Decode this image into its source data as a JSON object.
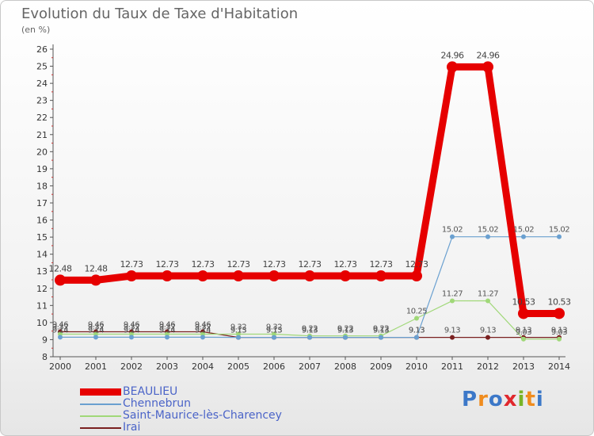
{
  "title": "Evolution du Taux de Taxe d'Habitation",
  "unit_label": "(en %)",
  "logo": {
    "letters": [
      "P",
      "r",
      "o",
      "x",
      "i",
      "t",
      "i"
    ],
    "colors": [
      "#3c78c8",
      "#f08c1e",
      "#3c78c8",
      "#e0282d",
      "#78b428",
      "#f08c1e",
      "#3c78c8"
    ]
  },
  "chart_data": {
    "type": "line",
    "x": [
      "2000",
      "2001",
      "2002",
      "2003",
      "2004",
      "2005",
      "2006",
      "2007",
      "2008",
      "2009",
      "2010",
      "2011",
      "2012",
      "2013",
      "2014"
    ],
    "ylim": [
      8,
      26
    ],
    "y_ticks": [
      "8",
      "9",
      "10",
      "11",
      "12",
      "13",
      "14",
      "15",
      "16",
      "17",
      "18",
      "19",
      "20",
      "21",
      "22",
      "23",
      "24",
      "25",
      "26"
    ],
    "grid": false,
    "legend_position": "bottom-left",
    "series": [
      {
        "name": "BEAULIEU",
        "color": "#e60000",
        "values": [
          12.48,
          12.48,
          12.73,
          12.73,
          12.73,
          12.73,
          12.73,
          12.73,
          12.73,
          12.73,
          12.73,
          24.96,
          24.96,
          10.53,
          10.53
        ],
        "labels": [
          "12.48",
          "12.48",
          "12.73",
          "12.73",
          "12.73",
          "12.73",
          "12.73",
          "12.73",
          "12.73",
          "12.73",
          "12.73",
          "24.96",
          "24.96",
          "10.53",
          "10.53"
        ]
      },
      {
        "name": "Chennebrun",
        "color": "#6aa0d0",
        "values": [
          9.14,
          9.14,
          9.14,
          9.14,
          9.14,
          9.13,
          9.13,
          9.13,
          9.13,
          9.13,
          9.13,
          15.02,
          15.02,
          15.02,
          15.02
        ],
        "labels": [
          "9.14",
          "9.14",
          "9.14",
          "9.14",
          "9.14",
          "9.13",
          "9.13",
          "9.13",
          "9.13",
          "9.13",
          "9.13",
          "15.02",
          "15.02",
          "15.02",
          "15.02"
        ]
      },
      {
        "name": "Saint-Maurice-lès-Charencey",
        "color": "#a0d878",
        "values": [
          9.32,
          9.32,
          9.32,
          9.32,
          9.32,
          9.32,
          9.32,
          9.22,
          9.22,
          9.22,
          10.25,
          11.27,
          11.27,
          9.03,
          9.03
        ],
        "labels": [
          "9.32",
          "9.32",
          "9.32",
          "9.32",
          "9.32",
          "9.32",
          "9.32",
          "9.22",
          "9.22",
          "9.22",
          "10.25",
          "11.27",
          "11.27",
          "9.03",
          "9.03"
        ]
      },
      {
        "name": "Irai",
        "color": "#7a2020",
        "values": [
          9.46,
          9.46,
          9.46,
          9.46,
          9.46,
          9.13,
          9.13,
          9.13,
          9.13,
          9.13,
          9.13,
          9.13,
          9.13,
          9.13,
          9.13
        ],
        "labels": [
          "9.46",
          "9.46",
          "9.46",
          "9.46",
          "9.46",
          "9.13",
          "9.13",
          "9.13",
          "9.13",
          "9.13",
          "9.13",
          "9.13",
          "9.13",
          "9.13",
          "9.13"
        ]
      }
    ]
  }
}
